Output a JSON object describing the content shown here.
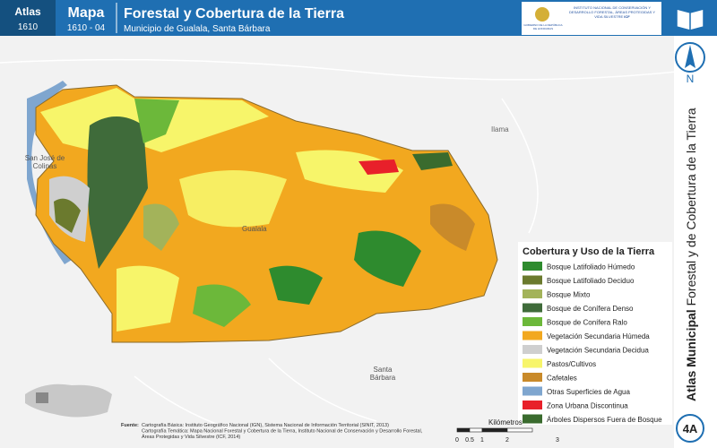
{
  "header": {
    "atlas_label": "Atlas",
    "atlas_number": "1610",
    "map_label": "Mapa",
    "map_number": "1610 - 04",
    "title": "Forestal y Cobertura de la Tierra",
    "subtitle": "Municipio de Gualala, Santa Bárbara",
    "logo_left": "GOBIERNO DE LA REPÚBLICA DE HONDURAS",
    "logo_right": "INSTITUTO NACIONAL DE CONSERVACIÓN Y DESARROLLO FORESTAL, ÁREAS PROTEGIDAS Y VIDA SILVESTRE",
    "logo_acronym": "ICF"
  },
  "north": "N",
  "side_title": {
    "bold": "Atlas Municipal",
    "rest": "Forestal y de Cobertura de la Tierra"
  },
  "places": [
    "Ilama",
    "San José de Colinas",
    "Gualala",
    "Santa Bárbara"
  ],
  "legend": {
    "title": "Cobertura y Uso de la Tierra",
    "items": [
      {
        "label": "Bosque Latifoliado Húmedo",
        "color": "#2e8b2e"
      },
      {
        "label": "Bosque Latifoliado Deciduo",
        "color": "#6b7a2e"
      },
      {
        "label": "Bosque Mixto",
        "color": "#a3b35a"
      },
      {
        "label": "Bosque de Conífera Denso",
        "color": "#3f6b3a"
      },
      {
        "label": "Bosque de Conífera Ralo",
        "color": "#6cb83a"
      },
      {
        "label": "Vegetación Secundaria Húmeda",
        "color": "#f2a81f"
      },
      {
        "label": "Vegetación Secundaria Decidua",
        "color": "#cfcfcf"
      },
      {
        "label": "Pastos/Cultivos",
        "color": "#f7f56a"
      },
      {
        "label": "Cafetales",
        "color": "#c98a2a"
      },
      {
        "label": "Otras Superficies de Agua",
        "color": "#7fa6cf"
      },
      {
        "label": "Zona Urbana Discontinua",
        "color": "#e8202a"
      },
      {
        "label": "Árboles Dispersos Fuera de Bosque",
        "color": "#3a6b2e"
      }
    ]
  },
  "sources": {
    "label": "Fuente:",
    "lines": [
      "Cartografía Básica: Instituto Geográfico Nacional (IGN), Sistema Nacional de Información Territorial (SINIT, 2013)",
      "Cartografía Temática: Mapa Nacional Forestal y Cobertura de la Tierra, Instituto Nacional de Conservación y Desarrollo Forestal,",
      "Áreas Protegidas y Vida Silvestre (ICF, 2014)"
    ]
  },
  "scale": {
    "labels": [
      "0",
      "0.5",
      "1",
      "2",
      "3"
    ],
    "unit": "Kilómetros"
  },
  "page_code": "4A"
}
